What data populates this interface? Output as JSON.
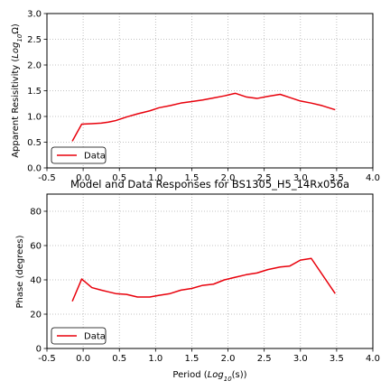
{
  "figure": {
    "title": "Model and Data Responses for BS1305_H5_14Rx056a"
  },
  "chart_data": [
    {
      "type": "line",
      "ylabel_main": "Apparent Resisitivity (",
      "ylabel_math": "Log",
      "ylabel_sub": "10",
      "ylabel_unit": "Ω)",
      "xlabel": "",
      "xlim": [
        -0.5,
        4.0
      ],
      "ylim": [
        0.0,
        3.0
      ],
      "xticks": [
        "-0.5",
        "0.0",
        "0.5",
        "1.0",
        "1.5",
        "2.0",
        "2.5",
        "3.0",
        "3.5",
        "4.0"
      ],
      "yticks": [
        "0.0",
        "0.5",
        "1.0",
        "1.5",
        "2.0",
        "2.5",
        "3.0"
      ],
      "grid": true,
      "legend_position": "lower-left",
      "series": [
        {
          "name": "Data",
          "color": "#e8000b",
          "x": [
            -0.15,
            -0.02,
            0.12,
            0.25,
            0.35,
            0.45,
            0.6,
            0.75,
            0.92,
            1.05,
            1.2,
            1.35,
            1.5,
            1.65,
            1.8,
            1.95,
            2.1,
            2.25,
            2.4,
            2.55,
            2.72,
            2.85,
            3.0,
            3.15,
            3.3,
            3.48
          ],
          "y": [
            0.52,
            0.85,
            0.86,
            0.87,
            0.89,
            0.92,
            0.99,
            1.05,
            1.11,
            1.17,
            1.21,
            1.26,
            1.29,
            1.32,
            1.36,
            1.4,
            1.45,
            1.38,
            1.35,
            1.39,
            1.43,
            1.37,
            1.3,
            1.26,
            1.21,
            1.13
          ]
        }
      ]
    },
    {
      "type": "line",
      "ylabel": "Phase (degrees)",
      "xlabel_main": "Period (",
      "xlabel_math": "Log",
      "xlabel_sub": "10",
      "xlabel_unit": "(s))",
      "xlim": [
        -0.5,
        4.0
      ],
      "ylim": [
        0,
        90
      ],
      "xticks": [
        "-0.5",
        "0.0",
        "0.5",
        "1.0",
        "1.5",
        "2.0",
        "2.5",
        "3.0",
        "3.5",
        "4.0"
      ],
      "yticks": [
        "0",
        "20",
        "40",
        "60",
        "80"
      ],
      "grid": true,
      "legend_position": "lower-left",
      "series": [
        {
          "name": "Data",
          "color": "#e8000b",
          "x": [
            -0.15,
            -0.02,
            0.12,
            0.25,
            0.35,
            0.45,
            0.6,
            0.75,
            0.92,
            1.05,
            1.2,
            1.35,
            1.5,
            1.65,
            1.8,
            1.95,
            2.1,
            2.25,
            2.4,
            2.55,
            2.72,
            2.85,
            3.0,
            3.15,
            3.48
          ],
          "y": [
            27.5,
            40.5,
            35.5,
            34.0,
            33.0,
            32.0,
            31.5,
            30.0,
            30.0,
            31.0,
            32.0,
            34.0,
            35.0,
            36.8,
            37.5,
            40.0,
            41.5,
            43.0,
            44.0,
            46.0,
            47.5,
            48.0,
            51.5,
            52.5,
            32.0
          ]
        }
      ]
    }
  ]
}
